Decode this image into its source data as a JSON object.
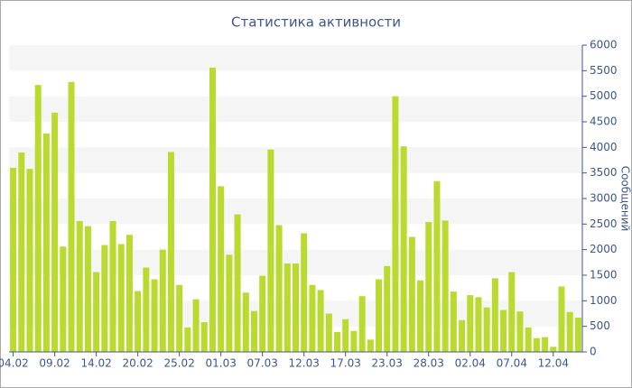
{
  "chart_data": {
    "type": "bar",
    "title": "Статистика активности",
    "y_label": "Сообщений",
    "categories": [
      "04.02",
      null,
      null,
      null,
      null,
      "09.02",
      null,
      null,
      null,
      null,
      "14.02",
      null,
      null,
      null,
      null,
      "20.02",
      null,
      null,
      null,
      null,
      "25.02",
      null,
      null,
      null,
      null,
      "01.03",
      null,
      null,
      null,
      null,
      "07.03",
      null,
      null,
      null,
      null,
      "12.03",
      null,
      null,
      null,
      null,
      "17.03",
      null,
      null,
      null,
      null,
      "23.03",
      null,
      null,
      null,
      null,
      "28.03",
      null,
      null,
      null,
      null,
      "02.04",
      null,
      null,
      null,
      null,
      "07.04",
      null,
      null,
      null,
      null,
      "12.04",
      null,
      null,
      null
    ],
    "values": [
      3600,
      3900,
      3580,
      5220,
      4270,
      4680,
      2060,
      5280,
      2560,
      2460,
      1560,
      2090,
      2560,
      2110,
      2290,
      1190,
      1650,
      1420,
      2000,
      3910,
      1310,
      480,
      1030,
      580,
      5560,
      3240,
      1900,
      2690,
      1160,
      800,
      1490,
      3960,
      2480,
      1730,
      1730,
      2320,
      1310,
      1210,
      750,
      390,
      640,
      410,
      1090,
      240,
      1420,
      1680,
      5000,
      4020,
      2250,
      1400,
      2540,
      3340,
      2570,
      1180,
      620,
      1110,
      1070,
      870,
      1440,
      820,
      1560,
      790,
      480,
      270,
      290,
      100,
      1280,
      780,
      670
    ],
    "color": "#bada2f",
    "ylim": [
      0,
      6000
    ],
    "yticks": [
      0,
      500,
      1000,
      1500,
      2000,
      2500,
      3000,
      3500,
      4000,
      4500,
      5000,
      5500,
      6000
    ],
    "y_axis_side": "right",
    "grid": "bands"
  }
}
